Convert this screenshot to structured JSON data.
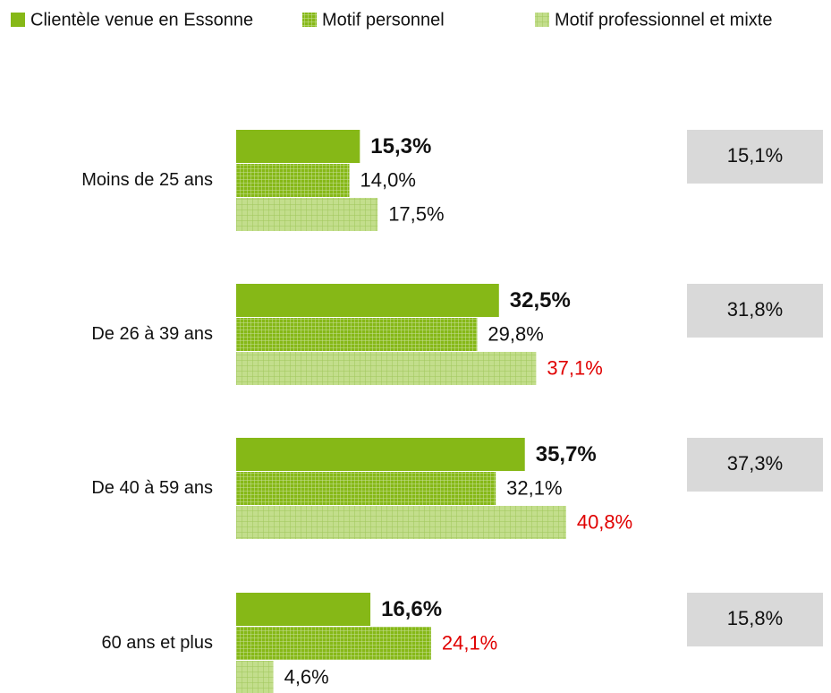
{
  "chart_data": {
    "type": "hbar",
    "categories": [
      "Moins de 25 ans",
      "De 26 à 39 ans",
      "De 40 à 59 ans",
      "60 ans et plus"
    ],
    "series": [
      {
        "name": "Clientèle venue en Essonne",
        "color": "#86b817",
        "pattern": "solid",
        "label_weight": "bold",
        "values": [
          15.3,
          32.5,
          35.7,
          16.6
        ],
        "value_labels": [
          "15,3%",
          "32,5%",
          "35,7%",
          "16,6%"
        ],
        "label_colors": [
          "#111111",
          "#111111",
          "#111111",
          "#111111"
        ]
      },
      {
        "name": "Motif personnel",
        "color": "#9cc54a",
        "pattern": "grid",
        "label_weight": "normal",
        "values": [
          14.0,
          29.8,
          32.1,
          24.1
        ],
        "value_labels": [
          "14,0%",
          "29,8%",
          "32,1%",
          "24,1%"
        ],
        "label_colors": [
          "#111111",
          "#111111",
          "#111111",
          "#e00000"
        ]
      },
      {
        "name": "Motif professionnel et mixte",
        "color": "#c3de8c",
        "pattern": "grid",
        "label_weight": "normal",
        "values": [
          17.5,
          37.1,
          40.8,
          4.6
        ],
        "value_labels": [
          "17,5%",
          "37,1%",
          "40,8%",
          "4,6%"
        ],
        "label_colors": [
          "#111111",
          "#e00000",
          "#e00000",
          "#111111"
        ]
      }
    ],
    "boxes": {
      "color": "#d9d9d9",
      "values": [
        15.1,
        31.8,
        37.3,
        15.8
      ],
      "value_labels": [
        "15,1%",
        "31,8%",
        "37,3%",
        "15,8%"
      ]
    },
    "xlim": [
      0,
      50
    ]
  }
}
